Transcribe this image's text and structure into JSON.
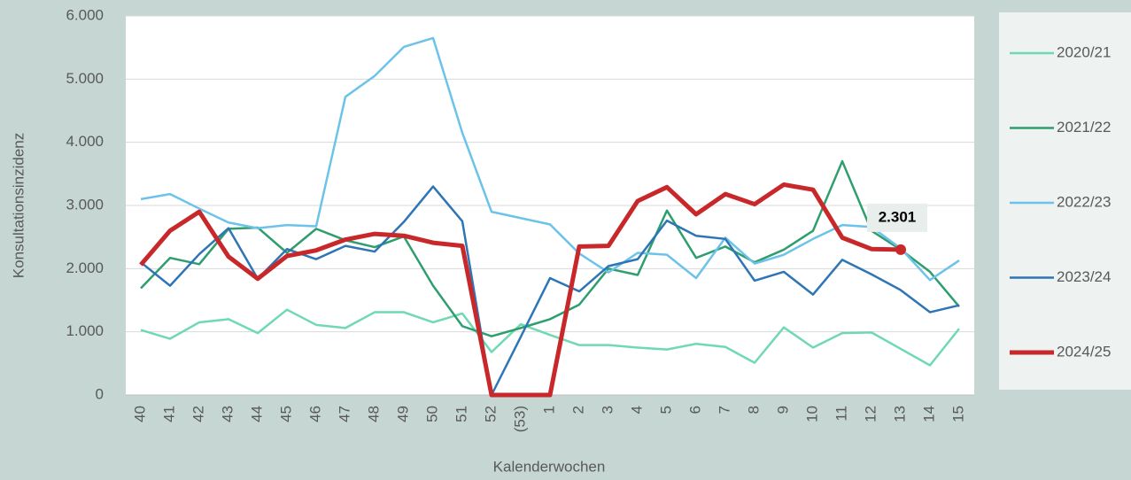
{
  "chart_data": {
    "type": "line",
    "x_label": "Kalenderwochen",
    "y_label": "Konsultationsinzidenz",
    "categories": [
      "40",
      "41",
      "42",
      "43",
      "44",
      "45",
      "46",
      "47",
      "48",
      "49",
      "50",
      "51",
      "52",
      "(53)",
      "1",
      "2",
      "3",
      "4",
      "5",
      "6",
      "7",
      "8",
      "9",
      "10",
      "11",
      "12",
      "13",
      "14",
      "15"
    ],
    "ylim": [
      0,
      6000
    ],
    "yticks": [
      0,
      {
        "value": 1000,
        "label": "1.000"
      },
      {
        "value": 2000,
        "label": "2.000"
      },
      {
        "value": 3000,
        "label": "3.000"
      },
      {
        "value": 4000,
        "label": "4.000"
      },
      {
        "value": 5000,
        "label": "5.000"
      },
      {
        "value": 6000,
        "label": "6.000"
      }
    ],
    "grid": true,
    "legend": "right",
    "series": [
      {
        "name": "2020/21",
        "color": "#6fd9b2",
        "width": 2.5,
        "values": [
          1030,
          890,
          1150,
          1200,
          980,
          1350,
          1110,
          1060,
          1310,
          1310,
          1150,
          1290,
          680,
          1120,
          950,
          790,
          790,
          750,
          720,
          810,
          760,
          510,
          1070,
          750,
          980,
          990,
          730,
          470,
          1050
        ]
      },
      {
        "name": "2021/22",
        "color": "#2e9e6e",
        "width": 2.5,
        "values": [
          1690,
          2170,
          2070,
          2630,
          2650,
          2250,
          2630,
          2450,
          2340,
          2510,
          1730,
          1090,
          930,
          1060,
          1200,
          1430,
          2000,
          1900,
          2920,
          2170,
          2350,
          2100,
          2300,
          2600,
          3700,
          2600,
          2300,
          1950,
          1400
        ]
      },
      {
        "name": "2022/23",
        "color": "#6cc3ea",
        "width": 2.5,
        "values": [
          3100,
          3180,
          2950,
          2730,
          2640,
          2690,
          2670,
          4720,
          5050,
          5510,
          5650,
          4150,
          2900,
          2800,
          2700,
          2240,
          1940,
          2250,
          2220,
          1850,
          2490,
          2080,
          2220,
          2470,
          2690,
          2660,
          2320,
          1820,
          2130
        ]
      },
      {
        "name": "2023/24",
        "color": "#2e75b6",
        "width": 2.5,
        "values": [
          2100,
          1730,
          2230,
          2640,
          1840,
          2310,
          2150,
          2360,
          2270,
          2740,
          3300,
          2750,
          0,
          920,
          1850,
          1640,
          2040,
          2150,
          2760,
          2520,
          2470,
          1810,
          1950,
          1590,
          2140,
          1910,
          1660,
          1310,
          1420
        ]
      },
      {
        "name": "2024/25",
        "color": "#c8282a",
        "width": 5,
        "values": [
          2060,
          2600,
          2900,
          2190,
          1840,
          2200,
          2290,
          2460,
          2550,
          2520,
          2410,
          2360,
          0,
          0,
          0,
          2350,
          2360,
          3070,
          3290,
          2860,
          3180,
          3020,
          3330,
          3250,
          2490,
          2310,
          2301,
          null,
          null
        ],
        "value_labels": [
          null,
          null,
          null,
          null,
          null,
          null,
          null,
          null,
          null,
          null,
          null,
          null,
          null,
          null,
          null,
          null,
          null,
          null,
          null,
          null,
          null,
          null,
          null,
          null,
          null,
          null,
          "2.301",
          null,
          null
        ]
      }
    ]
  }
}
